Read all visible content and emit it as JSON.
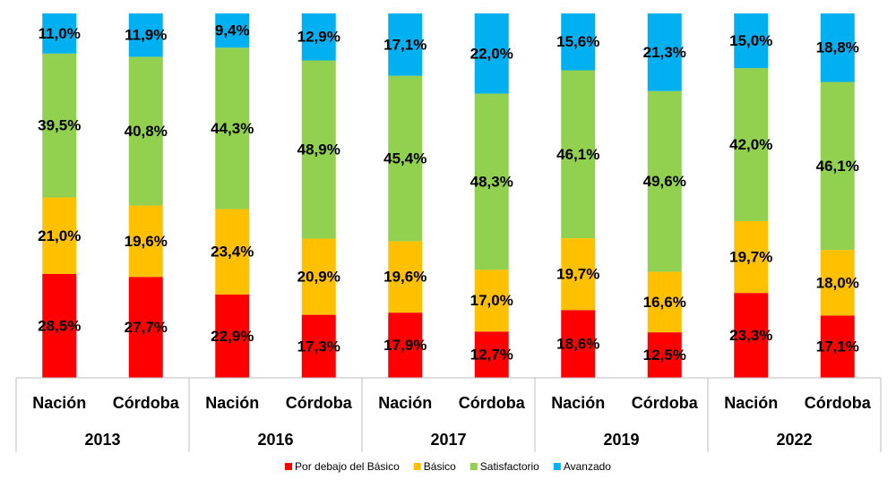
{
  "chart_data": {
    "type": "stacked-bar-100",
    "groups": [
      "2013",
      "2016",
      "2017",
      "2019",
      "2022"
    ],
    "categories": [
      "Nación",
      "Córdoba",
      "Nación",
      "Córdoba",
      "Nación",
      "Córdoba",
      "Nación",
      "Córdoba",
      "Nación",
      "Córdoba"
    ],
    "series": [
      {
        "name": "Por debajo del Básico",
        "color": "#ff0000",
        "values": [
          28.5,
          27.7,
          22.9,
          17.3,
          17.9,
          12.7,
          18.6,
          12.5,
          23.3,
          17.1
        ],
        "value_labels": [
          "28,5%",
          "27,7%",
          "22,9%",
          "17,3%",
          "17,9%",
          "12,7%",
          "18,6%",
          "12,5%",
          "23,3%",
          "17,1%"
        ]
      },
      {
        "name": "Básico",
        "color": "#ffc000",
        "values": [
          21.0,
          19.6,
          23.4,
          20.9,
          19.6,
          17.0,
          19.7,
          16.6,
          19.7,
          18.0
        ],
        "value_labels": [
          "21,0%",
          "19,6%",
          "23,4%",
          "20,9%",
          "19,6%",
          "17,0%",
          "19,7%",
          "16,6%",
          "19,7%",
          "18,0%"
        ]
      },
      {
        "name": "Satisfactorio",
        "color": "#92d050",
        "values": [
          39.5,
          40.8,
          44.3,
          48.9,
          45.4,
          48.3,
          46.1,
          49.6,
          42.0,
          46.1
        ],
        "value_labels": [
          "39,5%",
          "40,8%",
          "44,3%",
          "48,9%",
          "45,4%",
          "48,3%",
          "46,1%",
          "49,6%",
          "42,0%",
          "46,1%"
        ]
      },
      {
        "name": "Avanzado",
        "color": "#00b0f0",
        "values": [
          11.0,
          11.9,
          9.4,
          12.9,
          17.1,
          22.0,
          15.6,
          21.3,
          15.0,
          18.8
        ],
        "value_labels": [
          "11,0%",
          "11,9%",
          "9,4%",
          "12,9%",
          "17,1%",
          "22,0%",
          "15,6%",
          "21,3%",
          "15,0%",
          "18,8%"
        ]
      }
    ],
    "legend": "bottom"
  }
}
